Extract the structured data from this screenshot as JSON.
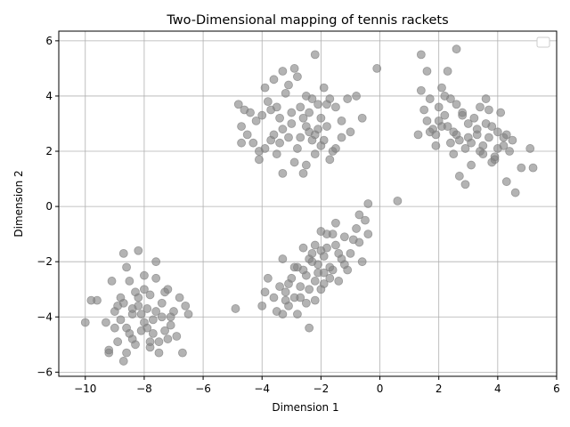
{
  "chart_data": {
    "type": "scatter",
    "title": "Two-Dimensional mapping of tennis rackets",
    "xlabel": "Dimension 1",
    "ylabel": "Dimension 2",
    "xlim": [
      -10.9,
      6.0
    ],
    "ylim": [
      -6.15,
      6.35
    ],
    "xticks": [
      -10,
      -8,
      -6,
      -4,
      -2,
      0,
      2,
      4,
      6
    ],
    "yticks": [
      -6,
      -4,
      -2,
      0,
      2,
      4,
      6
    ],
    "grid": true,
    "legend": "top-right",
    "point_color": "#808080",
    "series": [
      {
        "points": [
          [
            -4.8,
            3.7
          ],
          [
            -4.6,
            3.5
          ],
          [
            -4.4,
            3.4
          ],
          [
            -4.2,
            3.1
          ],
          [
            -4.0,
            3.3
          ],
          [
            -3.9,
            4.3
          ],
          [
            -3.8,
            3.8
          ],
          [
            -3.7,
            3.5
          ],
          [
            -3.6,
            4.6
          ],
          [
            -3.5,
            3.6
          ],
          [
            -3.4,
            3.2
          ],
          [
            -3.3,
            4.9
          ],
          [
            -3.2,
            4.1
          ],
          [
            -3.1,
            4.4
          ],
          [
            -3.0,
            3.4
          ],
          [
            -2.9,
            5.0
          ],
          [
            -2.8,
            4.7
          ],
          [
            -2.7,
            3.6
          ],
          [
            -2.6,
            3.2
          ],
          [
            -2.5,
            4.0
          ],
          [
            -2.4,
            3.4
          ],
          [
            -2.3,
            3.9
          ],
          [
            -2.2,
            5.5
          ],
          [
            -2.1,
            3.7
          ],
          [
            -2.0,
            3.2
          ],
          [
            -1.9,
            4.3
          ],
          [
            -1.8,
            3.7
          ],
          [
            -1.7,
            3.9
          ],
          [
            -1.5,
            3.6
          ],
          [
            -1.3,
            3.1
          ],
          [
            -1.1,
            3.9
          ],
          [
            -0.8,
            4.0
          ],
          [
            -0.6,
            3.2
          ],
          [
            -0.1,
            5.0
          ],
          [
            -4.7,
            2.9
          ],
          [
            -4.5,
            2.6
          ],
          [
            -4.3,
            2.3
          ],
          [
            -4.1,
            2.0
          ],
          [
            -3.9,
            2.1
          ],
          [
            -3.7,
            2.4
          ],
          [
            -3.6,
            2.6
          ],
          [
            -3.4,
            2.3
          ],
          [
            -3.3,
            2.8
          ],
          [
            -3.1,
            2.5
          ],
          [
            -2.9,
            1.6
          ],
          [
            -2.8,
            2.1
          ],
          [
            -2.7,
            2.5
          ],
          [
            -2.6,
            1.2
          ],
          [
            -2.5,
            1.5
          ],
          [
            -2.4,
            2.7
          ],
          [
            -2.3,
            2.4
          ],
          [
            -2.2,
            1.9
          ],
          [
            -2.1,
            2.8
          ],
          [
            -2.0,
            2.2
          ],
          [
            -1.9,
            2.4
          ],
          [
            -1.7,
            1.7
          ],
          [
            -1.6,
            2.0
          ],
          [
            -1.5,
            2.1
          ],
          [
            -1.3,
            2.5
          ],
          [
            -1.0,
            2.7
          ],
          [
            -4.1,
            1.7
          ],
          [
            -3.3,
            1.2
          ],
          [
            -2.5,
            2.9
          ],
          [
            -1.8,
            2.9
          ],
          [
            -3.0,
            3.0
          ],
          [
            -2.2,
            2.6
          ],
          [
            -4.7,
            2.3
          ],
          [
            -3.5,
            1.9
          ]
        ]
      },
      {
        "points": [
          [
            1.3,
            2.6
          ],
          [
            1.4,
            4.2
          ],
          [
            1.5,
            3.5
          ],
          [
            1.6,
            3.1
          ],
          [
            1.7,
            3.9
          ],
          [
            1.8,
            2.8
          ],
          [
            1.9,
            2.6
          ],
          [
            2.0,
            3.6
          ],
          [
            2.1,
            4.3
          ],
          [
            2.2,
            3.3
          ],
          [
            2.3,
            2.9
          ],
          [
            2.4,
            3.9
          ],
          [
            2.5,
            2.7
          ],
          [
            2.6,
            3.7
          ],
          [
            2.7,
            2.4
          ],
          [
            2.8,
            3.3
          ],
          [
            2.9,
            2.1
          ],
          [
            3.0,
            3.0
          ],
          [
            3.1,
            2.3
          ],
          [
            3.2,
            3.2
          ],
          [
            3.3,
            2.6
          ],
          [
            3.4,
            3.6
          ],
          [
            3.5,
            2.2
          ],
          [
            3.6,
            3.9
          ],
          [
            3.7,
            2.5
          ],
          [
            3.8,
            2.9
          ],
          [
            3.9,
            1.8
          ],
          [
            4.0,
            2.7
          ],
          [
            4.1,
            3.4
          ],
          [
            4.2,
            2.2
          ],
          [
            4.3,
            2.6
          ],
          [
            4.4,
            2.0
          ],
          [
            4.5,
            2.4
          ],
          [
            4.6,
            0.5
          ],
          [
            4.8,
            1.4
          ],
          [
            5.1,
            2.1
          ],
          [
            5.2,
            1.4
          ],
          [
            1.6,
            4.9
          ],
          [
            2.6,
            5.7
          ],
          [
            2.3,
            4.9
          ],
          [
            1.9,
            2.2
          ],
          [
            2.1,
            2.9
          ],
          [
            2.5,
            1.9
          ],
          [
            2.7,
            1.1
          ],
          [
            2.9,
            0.8
          ],
          [
            3.1,
            1.5
          ],
          [
            3.5,
            1.9
          ],
          [
            3.8,
            1.6
          ],
          [
            4.3,
            0.9
          ],
          [
            1.4,
            5.5
          ],
          [
            2.2,
            4.0
          ],
          [
            2.8,
            3.4
          ],
          [
            3.3,
            2.8
          ],
          [
            3.6,
            3.0
          ],
          [
            4.0,
            2.1
          ],
          [
            2.4,
            2.3
          ],
          [
            3.0,
            2.5
          ],
          [
            1.7,
            2.7
          ],
          [
            2.0,
            3.1
          ],
          [
            3.7,
            3.5
          ],
          [
            4.2,
            2.5
          ],
          [
            2.6,
            2.6
          ],
          [
            3.4,
            2.0
          ],
          [
            3.9,
            1.7
          ]
        ]
      },
      {
        "points": [
          [
            -4.9,
            -3.7
          ],
          [
            -4.0,
            -3.6
          ],
          [
            -3.9,
            -3.1
          ],
          [
            -3.8,
            -2.6
          ],
          [
            -3.6,
            -3.3
          ],
          [
            -3.5,
            -3.8
          ],
          [
            -3.4,
            -2.9
          ],
          [
            -3.3,
            -1.9
          ],
          [
            -3.2,
            -3.1
          ],
          [
            -3.1,
            -3.6
          ],
          [
            -3.0,
            -2.6
          ],
          [
            -2.9,
            -3.3
          ],
          [
            -2.8,
            -2.2
          ],
          [
            -2.7,
            -2.9
          ],
          [
            -2.6,
            -1.5
          ],
          [
            -2.5,
            -2.5
          ],
          [
            -2.4,
            -3.0
          ],
          [
            -2.3,
            -1.7
          ],
          [
            -2.2,
            -2.7
          ],
          [
            -2.1,
            -2.1
          ],
          [
            -2.0,
            -0.9
          ],
          [
            -1.9,
            -2.4
          ],
          [
            -1.8,
            -1.5
          ],
          [
            -1.7,
            -2.2
          ],
          [
            -1.6,
            -1.0
          ],
          [
            -1.5,
            -1.4
          ],
          [
            -1.4,
            -2.7
          ],
          [
            -1.3,
            -1.9
          ],
          [
            -1.2,
            -1.1
          ],
          [
            -1.1,
            -2.3
          ],
          [
            -1.0,
            -1.7
          ],
          [
            -0.9,
            -1.2
          ],
          [
            -0.8,
            -0.8
          ],
          [
            -0.7,
            -0.3
          ],
          [
            -0.6,
            -2.0
          ],
          [
            -0.5,
            -0.5
          ],
          [
            -0.4,
            -1.0
          ],
          [
            -0.4,
            0.1
          ],
          [
            0.6,
            0.2
          ],
          [
            -2.4,
            -4.4
          ],
          [
            -3.3,
            -3.9
          ],
          [
            -2.7,
            -3.3
          ],
          [
            -2.1,
            -2.4
          ],
          [
            -1.9,
            -1.8
          ],
          [
            -1.5,
            -0.6
          ],
          [
            -2.3,
            -2.0
          ],
          [
            -2.9,
            -2.2
          ],
          [
            -2.0,
            -3.0
          ],
          [
            -1.7,
            -2.6
          ],
          [
            -2.6,
            -2.3
          ],
          [
            -3.1,
            -2.8
          ],
          [
            -2.2,
            -1.4
          ],
          [
            -1.4,
            -1.7
          ],
          [
            -2.5,
            -3.5
          ],
          [
            -2.8,
            -3.9
          ],
          [
            -1.2,
            -2.1
          ],
          [
            -2.2,
            -3.4
          ],
          [
            -1.8,
            -1.0
          ],
          [
            -0.7,
            -1.3
          ],
          [
            -1.9,
            -2.8
          ],
          [
            -2.4,
            -1.9
          ],
          [
            -1.6,
            -2.3
          ],
          [
            -3.2,
            -3.4
          ],
          [
            -2.0,
            -1.6
          ]
        ]
      },
      {
        "points": [
          [
            -10.0,
            -4.2
          ],
          [
            -9.6,
            -3.4
          ],
          [
            -9.3,
            -4.2
          ],
          [
            -9.2,
            -5.3
          ],
          [
            -9.1,
            -2.7
          ],
          [
            -9.0,
            -3.8
          ],
          [
            -8.9,
            -4.9
          ],
          [
            -8.8,
            -3.3
          ],
          [
            -8.7,
            -5.6
          ],
          [
            -8.6,
            -4.4
          ],
          [
            -8.5,
            -2.7
          ],
          [
            -8.4,
            -3.9
          ],
          [
            -8.3,
            -5.0
          ],
          [
            -8.2,
            -3.6
          ],
          [
            -8.1,
            -4.5
          ],
          [
            -8.0,
            -2.5
          ],
          [
            -7.9,
            -3.7
          ],
          [
            -7.8,
            -5.1
          ],
          [
            -7.7,
            -4.1
          ],
          [
            -7.6,
            -2.6
          ],
          [
            -7.5,
            -4.9
          ],
          [
            -7.4,
            -3.5
          ],
          [
            -7.3,
            -3.1
          ],
          [
            -7.2,
            -4.8
          ],
          [
            -7.1,
            -4.0
          ],
          [
            -7.0,
            -3.8
          ],
          [
            -6.9,
            -4.7
          ],
          [
            -6.8,
            -3.3
          ],
          [
            -6.6,
            -3.6
          ],
          [
            -6.5,
            -3.9
          ],
          [
            -8.7,
            -1.7
          ],
          [
            -8.2,
            -1.6
          ],
          [
            -7.6,
            -2.0
          ],
          [
            -9.8,
            -3.4
          ],
          [
            -9.2,
            -5.2
          ],
          [
            -8.6,
            -2.2
          ],
          [
            -8.4,
            -4.8
          ],
          [
            -8.0,
            -4.2
          ],
          [
            -7.8,
            -3.2
          ],
          [
            -7.5,
            -5.3
          ],
          [
            -7.2,
            -3.0
          ],
          [
            -6.7,
            -5.3
          ],
          [
            -8.9,
            -3.6
          ],
          [
            -8.3,
            -3.1
          ],
          [
            -8.1,
            -3.9
          ],
          [
            -7.7,
            -4.6
          ],
          [
            -7.4,
            -4.0
          ],
          [
            -8.5,
            -4.6
          ],
          [
            -8.8,
            -4.1
          ],
          [
            -7.9,
            -4.4
          ],
          [
            -8.2,
            -3.3
          ],
          [
            -7.6,
            -3.8
          ],
          [
            -8.6,
            -5.3
          ],
          [
            -9.0,
            -4.4
          ],
          [
            -7.3,
            -4.5
          ],
          [
            -8.0,
            -3.0
          ],
          [
            -8.4,
            -3.7
          ],
          [
            -7.1,
            -4.3
          ],
          [
            -8.7,
            -3.5
          ],
          [
            -7.8,
            -4.9
          ]
        ]
      }
    ]
  }
}
